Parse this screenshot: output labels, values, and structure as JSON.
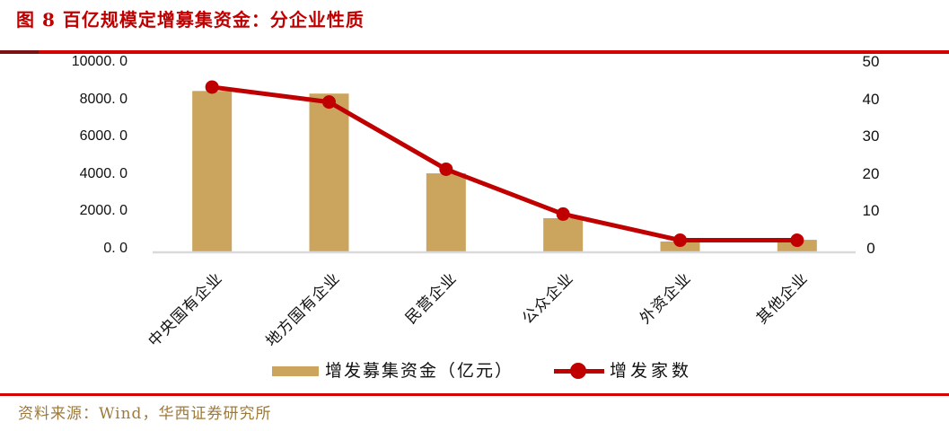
{
  "title": "图 8 百亿规模定增募集资金：分企业性质",
  "source_note": "资料来源：Wind，华西证券研究所",
  "legend": {
    "bar_label": "增发募集资金（亿元）",
    "line_label": "增发家数"
  },
  "colors": {
    "title_red": "#C00000",
    "rule_bright_red": "#D40000",
    "rule_dark_red": "#7C1113",
    "bar_tan": "#CBA45E",
    "line_red": "#C00000",
    "baseline_gray": "#D9D9D9",
    "axis_text": "#111111",
    "source_text": "#9C7A3C"
  },
  "chart_data": {
    "type": "bar",
    "subtype": "combo-bar-line-dual-axis",
    "title": "百亿规模定增募集资金：分企业性质",
    "categories": [
      "中央国有企业",
      "地方国有企业",
      "民营企业",
      "公众企业",
      "外资企业",
      "其他企业"
    ],
    "series": [
      {
        "name": "增发募集资金（亿元）",
        "type": "bar",
        "axis": "left",
        "values": [
          8590,
          8450,
          4180,
          1780,
          530,
          620
        ]
      },
      {
        "name": "增发家数",
        "type": "line",
        "axis": "right",
        "values": [
          44,
          40,
          22,
          10,
          3,
          3
        ]
      }
    ],
    "left_axis": {
      "min": 0,
      "max": 10000,
      "tick_step": 2000,
      "tick_labels": [
        "0. 0",
        "2000. 0",
        "4000. 0",
        "6000. 0",
        "8000. 0",
        "10000. 0"
      ]
    },
    "right_axis": {
      "min": 0,
      "max": 50,
      "tick_step": 10,
      "tick_labels": [
        "0",
        "10",
        "20",
        "30",
        "40",
        "50"
      ]
    },
    "grid": false,
    "legend_position": "bottom",
    "category_label_rotation_deg": 45
  }
}
